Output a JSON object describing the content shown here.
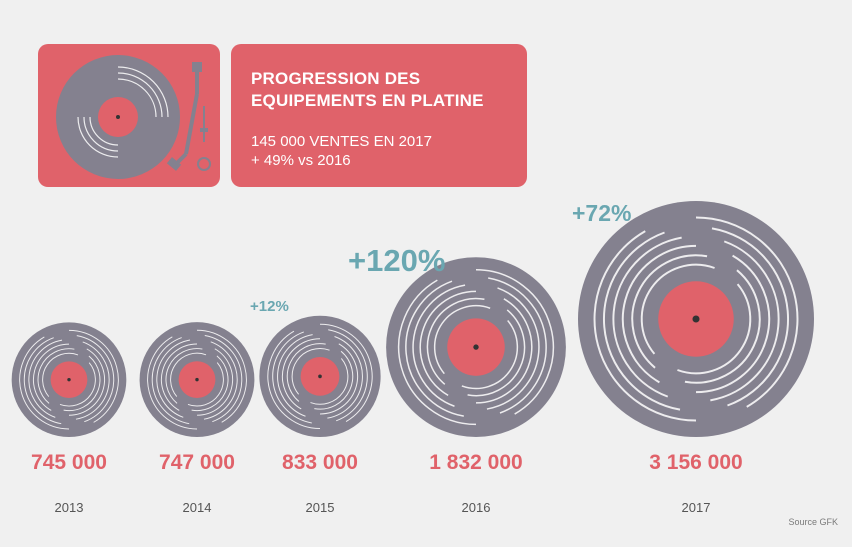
{
  "header": {
    "title": "PROGRESSION DES\nEQUIPEMENTS EN PLATINE",
    "subtitle": "145 000 VENTES EN 2017\n+ 49% vs 2016"
  },
  "source": "Source GFK",
  "colors": {
    "background": "#f0f0f0",
    "accent_red": "#e0626a",
    "record_grey": "#84818f",
    "growth_teal": "#6aa7b1",
    "value_red": "#e0626a",
    "year_grey": "#555555"
  },
  "icons": {
    "turntable": "turntable-icon"
  },
  "chart_data": {
    "type": "bubble",
    "title": "PROGRESSION DES EQUIPEMENTS EN PLATINE",
    "categories": [
      "2013",
      "2014",
      "2015",
      "2016",
      "2017"
    ],
    "values": [
      745000,
      747000,
      833000,
      1832000,
      3156000
    ],
    "value_labels": [
      "745 000",
      "747 000",
      "833 000",
      "1 832 000",
      "3 156 000"
    ],
    "growth_labels": [
      "",
      "",
      "+12%",
      "+120%",
      "+72%"
    ],
    "legend": "none",
    "grid": false
  }
}
